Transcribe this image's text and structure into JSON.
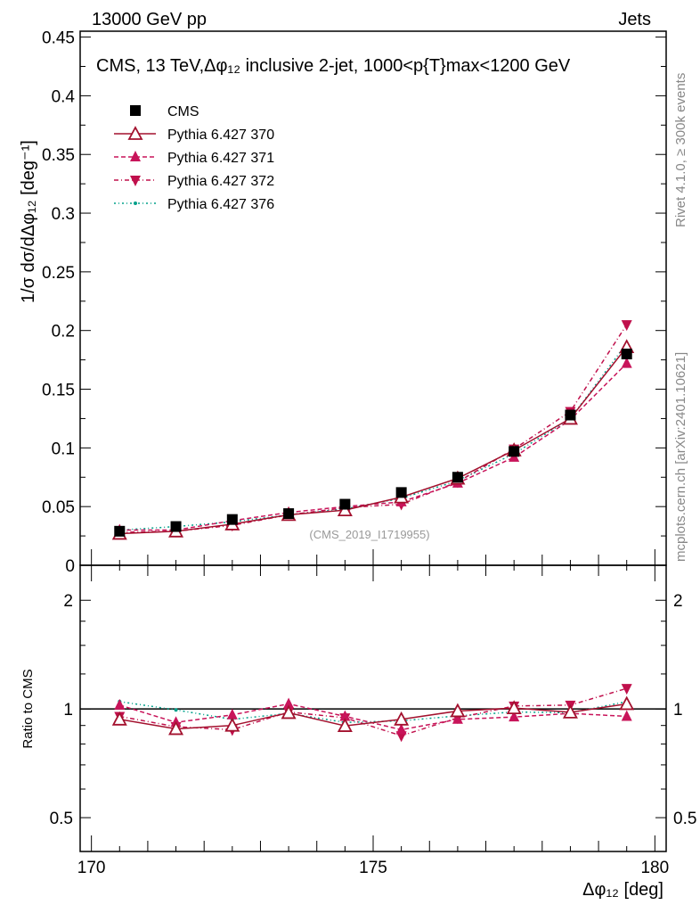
{
  "header": {
    "left": "13000 GeV pp",
    "right": "Jets"
  },
  "side": {
    "rivet": "Rivet 4.1.0, ≥ 300k events",
    "mcplots": "mcplots.cern.ch [arXiv:2401.10621]"
  },
  "chart_data": {
    "type": "line",
    "title": "CMS, 13 TeV,Δφ₁₂ inclusive 2-jet, 1000<p{T}max<1200 GeV",
    "xlabel": "Δφ₁₂ [deg]",
    "ylabel": "1/σ dσ/dΔφ₁₂ [deg⁻¹]",
    "ratio_ylabel": "Ratio to CMS",
    "watermark": "(CMS_2019_I1719955)",
    "xlim": [
      169.8,
      180.2
    ],
    "ylim": [
      0,
      0.455
    ],
    "ratio_ylim": [
      0.403,
      2.5
    ],
    "x_ticks": [
      "170",
      "175",
      "180"
    ],
    "y_ticks": [
      "0",
      "0.05",
      "0.1",
      "0.15",
      "0.2",
      "0.25",
      "0.3",
      "0.35",
      "0.4",
      "0.45"
    ],
    "ratio_ticks": [
      "0.5",
      "1",
      "2"
    ],
    "legend_position": "top-left",
    "x": [
      170.5,
      171.5,
      172.5,
      173.5,
      174.5,
      175.5,
      176.5,
      177.5,
      178.5,
      179.5
    ],
    "series": [
      {
        "name": "CMS",
        "color": "#000000",
        "values": [
          0.029,
          0.033,
          0.039,
          0.044,
          0.052,
          0.062,
          0.075,
          0.097,
          0.128,
          0.18
        ],
        "ratio": [
          1,
          1,
          1,
          1,
          1,
          1,
          1,
          1,
          1,
          1
        ]
      },
      {
        "name": "Pythia 6.427 370",
        "color": "#a3112e",
        "values": [
          0.027,
          0.029,
          0.035,
          0.043,
          0.047,
          0.058,
          0.074,
          0.098,
          0.125,
          0.186
        ],
        "ratio": [
          0.936,
          0.881,
          0.9,
          0.976,
          0.898,
          0.936,
          0.987,
          1.006,
          0.979,
          1.033
        ]
      },
      {
        "name": "Pythia 6.427 371",
        "color": "#c8145a",
        "values": [
          0.03,
          0.03,
          0.038,
          0.045,
          0.05,
          0.054,
          0.07,
          0.092,
          0.124,
          0.172
        ],
        "ratio": [
          1.025,
          0.918,
          0.963,
          1.033,
          0.954,
          0.876,
          0.936,
          0.95,
          0.972,
          0.954
        ]
      },
      {
        "name": "Pythia 6.427 372",
        "color": "#c0104c",
        "values": [
          0.028,
          0.029,
          0.034,
          0.043,
          0.049,
          0.052,
          0.071,
          0.099,
          0.131,
          0.205
        ],
        "ratio": [
          0.954,
          0.893,
          0.876,
          0.981,
          0.945,
          0.843,
          0.945,
          1.019,
          1.025,
          1.14
        ]
      },
      {
        "name": "Pythia 6.427 376",
        "color": "#00a08a",
        "values": [
          0.03,
          0.033,
          0.037,
          0.043,
          0.048,
          0.057,
          0.072,
          0.095,
          0.125,
          0.189
        ],
        "ratio": [
          1.048,
          0.994,
          0.936,
          0.972,
          0.918,
          0.927,
          0.957,
          0.981,
          0.976,
          1.048
        ]
      }
    ]
  }
}
